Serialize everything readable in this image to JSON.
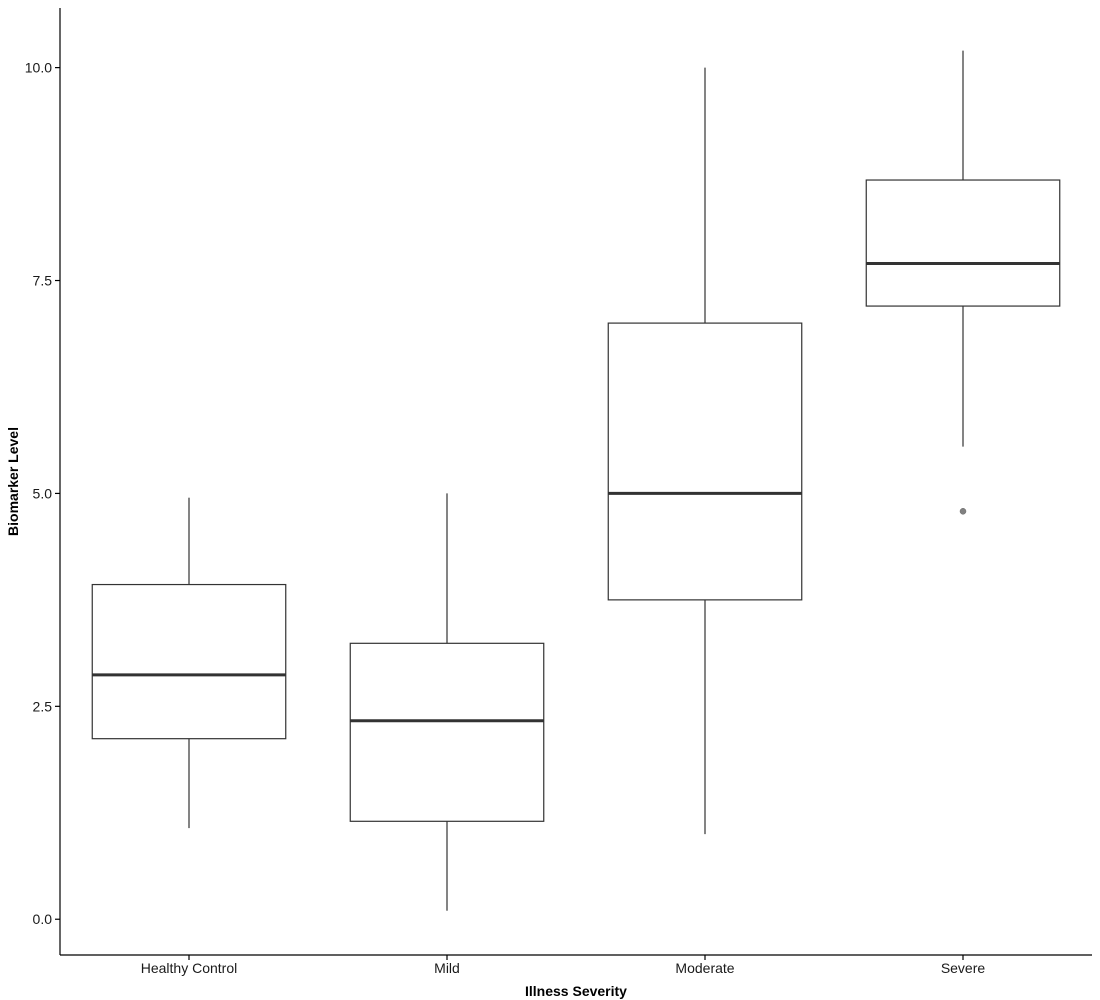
{
  "chart_data": {
    "type": "box",
    "title": "",
    "xlabel": "Illness Severity",
    "ylabel": "Biomarker Level",
    "ylim": [
      -0.42,
      10.7
    ],
    "yticks": [
      0.0,
      2.5,
      5.0,
      7.5,
      10.0
    ],
    "ytick_labels": [
      "0.0",
      "2.5",
      "5.0",
      "7.5",
      "10.0"
    ],
    "grid": false,
    "legend": "none",
    "categories": [
      "Healthy Control",
      "Mild",
      "Moderate",
      "Severe"
    ],
    "boxes": [
      {
        "category": "Healthy Control",
        "whisker_low": 1.07,
        "q1": 2.12,
        "median": 2.87,
        "q3": 3.93,
        "whisker_high": 4.95,
        "outliers": []
      },
      {
        "category": "Mild",
        "whisker_low": 0.1,
        "q1": 1.15,
        "median": 2.33,
        "q3": 3.24,
        "whisker_high": 5.0,
        "outliers": []
      },
      {
        "category": "Moderate",
        "whisker_low": 1.0,
        "q1": 3.75,
        "median": 5.0,
        "q3": 7.0,
        "whisker_high": 10.0,
        "outliers": []
      },
      {
        "category": "Severe",
        "whisker_low": 5.55,
        "q1": 7.2,
        "median": 7.7,
        "q3": 8.68,
        "whisker_high": 10.2,
        "outliers": [
          4.79
        ]
      }
    ],
    "colors": {
      "box_fill": "#ffffff",
      "box_stroke": "#333333",
      "outlier": "#808080",
      "axis": "#000000"
    }
  }
}
